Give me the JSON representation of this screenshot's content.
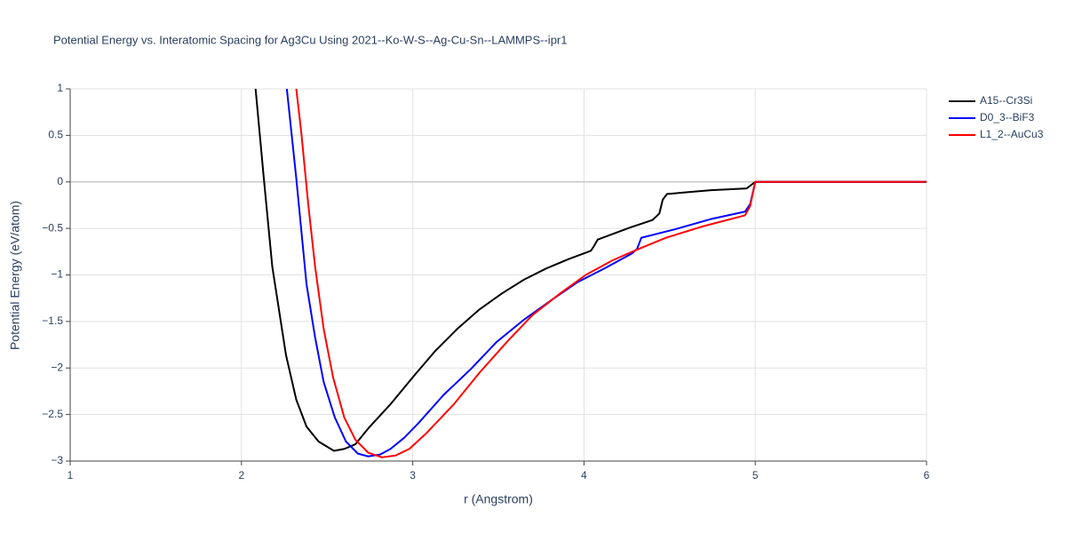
{
  "chart_data": {
    "type": "line",
    "title": "Potential Energy vs. Interatomic Spacing for Ag3Cu Using 2021--Ko-W-S--Ag-Cu-Sn--LAMMPS--ipr1",
    "x_label": "r (Angstrom)",
    "y_label": "Potential Energy (eV/atom)",
    "xlim": [
      1,
      6
    ],
    "ylim": [
      -3,
      1
    ],
    "xticks": [
      1,
      2,
      3,
      4,
      5,
      6
    ],
    "yticks": [
      {
        "value": -3,
        "label": "−3"
      },
      {
        "value": -2.5,
        "label": "−2.5"
      },
      {
        "value": -2,
        "label": "−2"
      },
      {
        "value": -1.5,
        "label": "−1.5"
      },
      {
        "value": -1,
        "label": "−1"
      },
      {
        "value": -0.5,
        "label": "−0.5"
      },
      0,
      0.5,
      1
    ],
    "grid": true,
    "zeroline": true,
    "legend": "outside-right",
    "series": [
      {
        "name": "A15--Cr3Si",
        "color": "#000000",
        "x": [
          2.08,
          2.13,
          2.18,
          2.26,
          2.32,
          2.38,
          2.45,
          2.54,
          2.6,
          2.665,
          2.74,
          2.87,
          3.0,
          3.13,
          3.26,
          3.39,
          3.52,
          3.65,
          3.78,
          3.91,
          4.04,
          4.055,
          4.08,
          4.27,
          4.4,
          4.44,
          4.46,
          4.485,
          4.74,
          4.95,
          5.0,
          6.0
        ],
        "values": [
          1.05,
          0.05,
          -0.91,
          -1.86,
          -2.34,
          -2.63,
          -2.79,
          -2.89,
          -2.87,
          -2.82,
          -2.65,
          -2.39,
          -2.1,
          -1.82,
          -1.58,
          -1.37,
          -1.2,
          -1.05,
          -0.93,
          -0.83,
          -0.74,
          -0.7,
          -0.62,
          -0.49,
          -0.41,
          -0.34,
          -0.19,
          -0.13,
          -0.09,
          -0.07,
          0,
          0
        ]
      },
      {
        "name": "D0_3--BiF3",
        "color": "#0000ff",
        "x": [
          2.265,
          2.32,
          2.38,
          2.43,
          2.48,
          2.545,
          2.61,
          2.68,
          2.74,
          2.81,
          2.87,
          2.95,
          3.03,
          3.18,
          3.34,
          3.49,
          3.65,
          3.81,
          3.96,
          4.12,
          4.28,
          4.31,
          4.335,
          4.53,
          4.74,
          4.94,
          4.97,
          5.0,
          6.0
        ],
        "values": [
          1.0,
          0.04,
          -1.1,
          -1.67,
          -2.15,
          -2.53,
          -2.79,
          -2.92,
          -2.95,
          -2.93,
          -2.87,
          -2.75,
          -2.6,
          -2.29,
          -2.01,
          -1.72,
          -1.48,
          -1.27,
          -1.08,
          -0.93,
          -0.77,
          -0.72,
          -0.6,
          -0.51,
          -0.4,
          -0.32,
          -0.24,
          0,
          0
        ]
      },
      {
        "name": "L1_2--AuCu3",
        "color": "#ff0000",
        "x": [
          2.32,
          2.35,
          2.39,
          2.43,
          2.48,
          2.535,
          2.6,
          2.665,
          2.74,
          2.82,
          2.9,
          2.98,
          3.08,
          3.24,
          3.39,
          3.55,
          3.7,
          3.86,
          4.01,
          4.17,
          4.32,
          4.48,
          4.69,
          4.94,
          4.97,
          5.0,
          6.0
        ],
        "values": [
          1.0,
          0.52,
          -0.24,
          -0.91,
          -1.58,
          -2.1,
          -2.53,
          -2.77,
          -2.91,
          -2.96,
          -2.94,
          -2.87,
          -2.7,
          -2.39,
          -2.05,
          -1.72,
          -1.43,
          -1.2,
          -1.0,
          -0.84,
          -0.72,
          -0.6,
          -0.48,
          -0.36,
          -0.26,
          0,
          0
        ]
      }
    ]
  }
}
